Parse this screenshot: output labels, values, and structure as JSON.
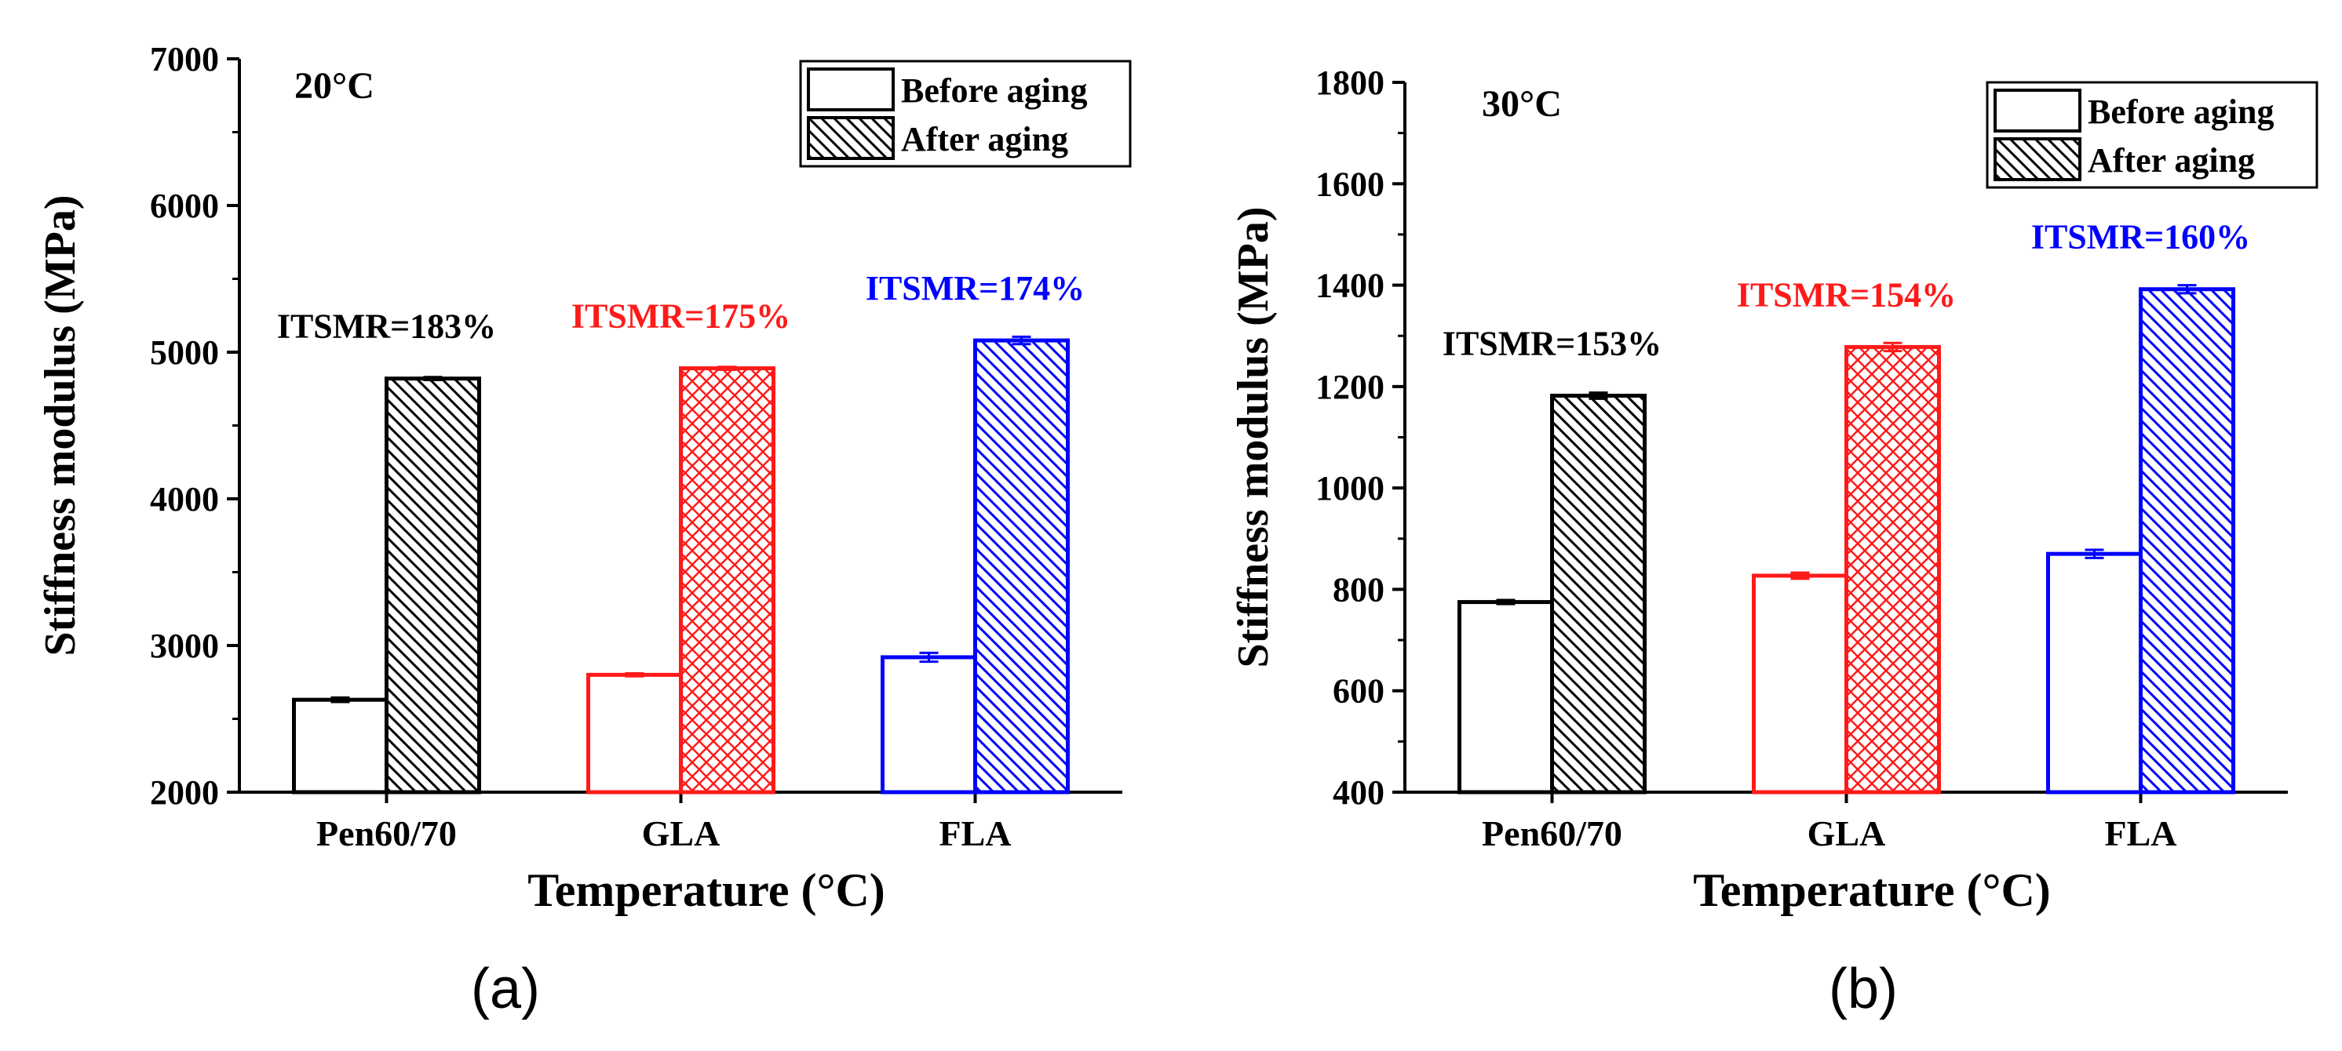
{
  "chart_data": [
    {
      "type": "bar",
      "panel_label": "(a)",
      "temperature_label": "20°C",
      "categories": [
        "Pen60/70",
        "GLA",
        "FLA"
      ],
      "series": [
        {
          "name": "Before aging",
          "values": [
            2630,
            2800,
            2920
          ],
          "errors": [
            15,
            10,
            30
          ]
        },
        {
          "name": "After aging",
          "values": [
            4820,
            4890,
            5080
          ],
          "errors": [
            10,
            10,
            25
          ]
        }
      ],
      "category_colors": [
        "#000000",
        "#ff1a1a",
        "#0000ff"
      ],
      "annotations": [
        "ITSMR=183%",
        "ITSMR=175%",
        "ITSMR=174%"
      ],
      "xlabel": "Temperature (°C)",
      "ylabel": "Stiffness modulus (MPa)",
      "ylim": [
        2000,
        7000
      ],
      "yticks": [
        2000,
        3000,
        4000,
        5000,
        6000,
        7000
      ],
      "legend": [
        "Before aging",
        "After aging"
      ],
      "legend_position": "top-right"
    },
    {
      "type": "bar",
      "panel_label": "(b)",
      "temperature_label": "30°C",
      "categories": [
        "Pen60/70",
        "GLA",
        "FLA"
      ],
      "series": [
        {
          "name": "Before aging",
          "values": [
            775,
            827,
            870
          ],
          "errors": [
            4,
            6,
            8
          ]
        },
        {
          "name": "After aging",
          "values": [
            1182,
            1278,
            1392
          ],
          "errors": [
            6,
            8,
            8
          ]
        }
      ],
      "category_colors": [
        "#000000",
        "#ff1a1a",
        "#0000ff"
      ],
      "annotations": [
        "ITSMR=153%",
        "ITSMR=154%",
        "ITSMR=160%"
      ],
      "xlabel": "Temperature (°C)",
      "ylabel": "Stiffness modulus (MPa)",
      "ylim": [
        400,
        1800
      ],
      "yticks": [
        400,
        600,
        800,
        1000,
        1200,
        1400,
        1600,
        1800
      ],
      "legend": [
        "Before aging",
        "After aging"
      ],
      "legend_position": "top-right"
    }
  ]
}
